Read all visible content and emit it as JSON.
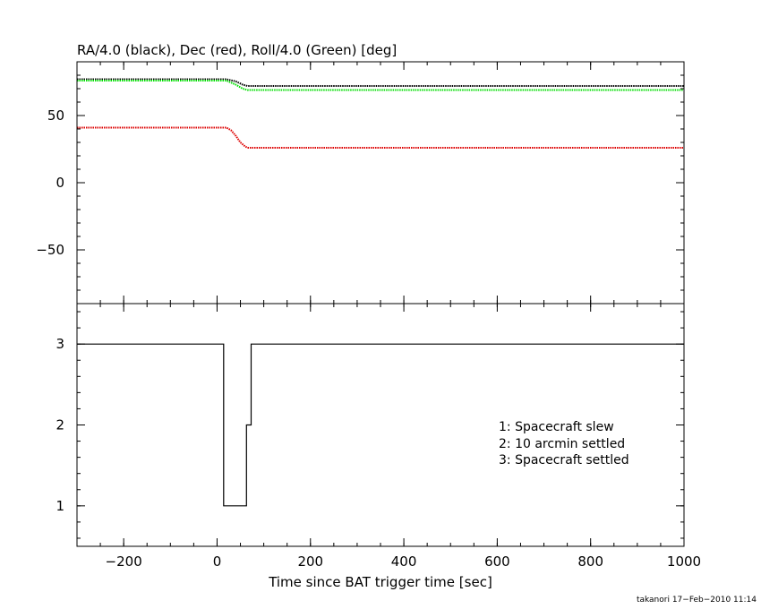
{
  "chart_data": [
    {
      "type": "line",
      "title": "RA/4.0 (black), Dec (red), Roll/4.0 (Green) [deg]",
      "xlabel": "",
      "ylabel": "",
      "xlim": [
        -300,
        1000
      ],
      "ylim": [
        -90,
        90
      ],
      "xticks": [
        -200,
        0,
        200,
        400,
        600,
        800,
        1000
      ],
      "yticks": [
        -50,
        0,
        50
      ],
      "ytick_labels": [
        "−50",
        "0",
        "50"
      ],
      "series": [
        {
          "color": "#000000",
          "x": [
            -300,
            0,
            20,
            40,
            55,
            65,
            1000
          ],
          "y": [
            77,
            77,
            77,
            75.5,
            73,
            72,
            72
          ]
        },
        {
          "color": "#00dd00",
          "x": [
            -300,
            0,
            20,
            40,
            55,
            65,
            1000
          ],
          "y": [
            76,
            76,
            76,
            73,
            70,
            69,
            69
          ]
        },
        {
          "color": "#dd0000",
          "x": [
            -300,
            0,
            20,
            30,
            40,
            50,
            60,
            65,
            1000
          ],
          "y": [
            41,
            41,
            41,
            39,
            35,
            30,
            27,
            26,
            26
          ]
        }
      ]
    },
    {
      "type": "line",
      "title": "",
      "xlabel": "Time since BAT trigger time [sec]",
      "ylabel": "",
      "xlim": [
        -300,
        1000
      ],
      "ylim": [
        0.5,
        3.5
      ],
      "xticks": [
        -200,
        0,
        200,
        400,
        600,
        800,
        1000
      ],
      "xtick_labels": [
        "−200",
        "0",
        "200",
        "400",
        "600",
        "800",
        "1000"
      ],
      "yticks": [
        1,
        2,
        3
      ],
      "series": [
        {
          "color": "#000000",
          "step": true,
          "x": [
            -300,
            14,
            14,
            63,
            63,
            73,
            73,
            1000
          ],
          "y": [
            3,
            3,
            1,
            1,
            2,
            2,
            3,
            3
          ]
        }
      ],
      "legend": [
        "1: Spacecraft slew",
        "2: 10 arcmin settled",
        "3: Spacecraft settled"
      ]
    }
  ],
  "footer": "takanori 17−Feb−2010 11:14"
}
